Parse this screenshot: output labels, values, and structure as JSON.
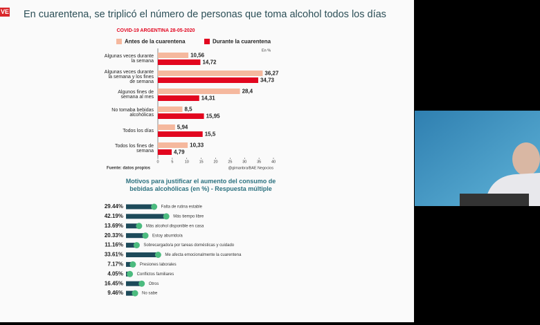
{
  "live_badge": "VE",
  "slide_title": "En cuarentena, se triplicó el número de personas que toma alcohol todos los días",
  "chart_data": [
    {
      "type": "bar",
      "orientation": "horizontal",
      "subtitle": "COVID-19 ARGENTINA 28-05-2020",
      "unit_note": "En %",
      "categories": [
        "Algunas veces durante la semana",
        "Algunas veces durante la semana y los fines de semana",
        "Algunos fines de semana al mes",
        "No tomaba bebidas alcohólicas",
        "Todos los días",
        "Todos los fines de semana"
      ],
      "series": [
        {
          "name": "Antes de la cuarentena",
          "color": "#f5b89e",
          "values": [
            10.56,
            36.27,
            28.4,
            8.5,
            5.94,
            10.33
          ],
          "value_labels": [
            "10,56",
            "36,27",
            "28,4",
            "8,5",
            "5,94",
            "10,33"
          ]
        },
        {
          "name": "Durante la cuarentena",
          "color": "#e2061f",
          "values": [
            14.72,
            34.73,
            14.31,
            15.95,
            15.5,
            4.79
          ],
          "value_labels": [
            "14,72",
            "34,73",
            "14,31",
            "15,95",
            "15,5",
            "4,79"
          ]
        }
      ],
      "xlim": [
        0,
        40
      ],
      "xticks": [
        0,
        5,
        10,
        15,
        20,
        25,
        30,
        35,
        40
      ],
      "source": "Fuente: datos propios",
      "credit": "@gimanbra/BAE Negocios"
    },
    {
      "type": "bar",
      "orientation": "horizontal",
      "title": "Motivos para justificar el aumento del consumo de bebidas alcohólicas (en %) - Respuesta múltiple",
      "categories": [
        "Falta de rutina estable",
        "Más tiempo libre",
        "Más alcohol disponible en casa",
        "Estoy aburrido/a",
        "Sobrecargado/a por tareas domésticas y cuidado",
        "Me afecta emocionalmente la cuarentena",
        "Presiones laborales",
        "Conflictos familiares",
        "Otros",
        "No sabe"
      ],
      "values": [
        29.44,
        42.19,
        13.69,
        20.33,
        11.16,
        33.61,
        7.17,
        4.05,
        16.45,
        9.46
      ],
      "value_labels": [
        "29.44%",
        "42.19%",
        "13.69%",
        "20.33%",
        "11.16%",
        "33.61%",
        "7.17%",
        "4.05%",
        "16.45%",
        "9.46%"
      ],
      "color": "#1d4a5a",
      "marker_color": "#4cbb7f"
    }
  ]
}
